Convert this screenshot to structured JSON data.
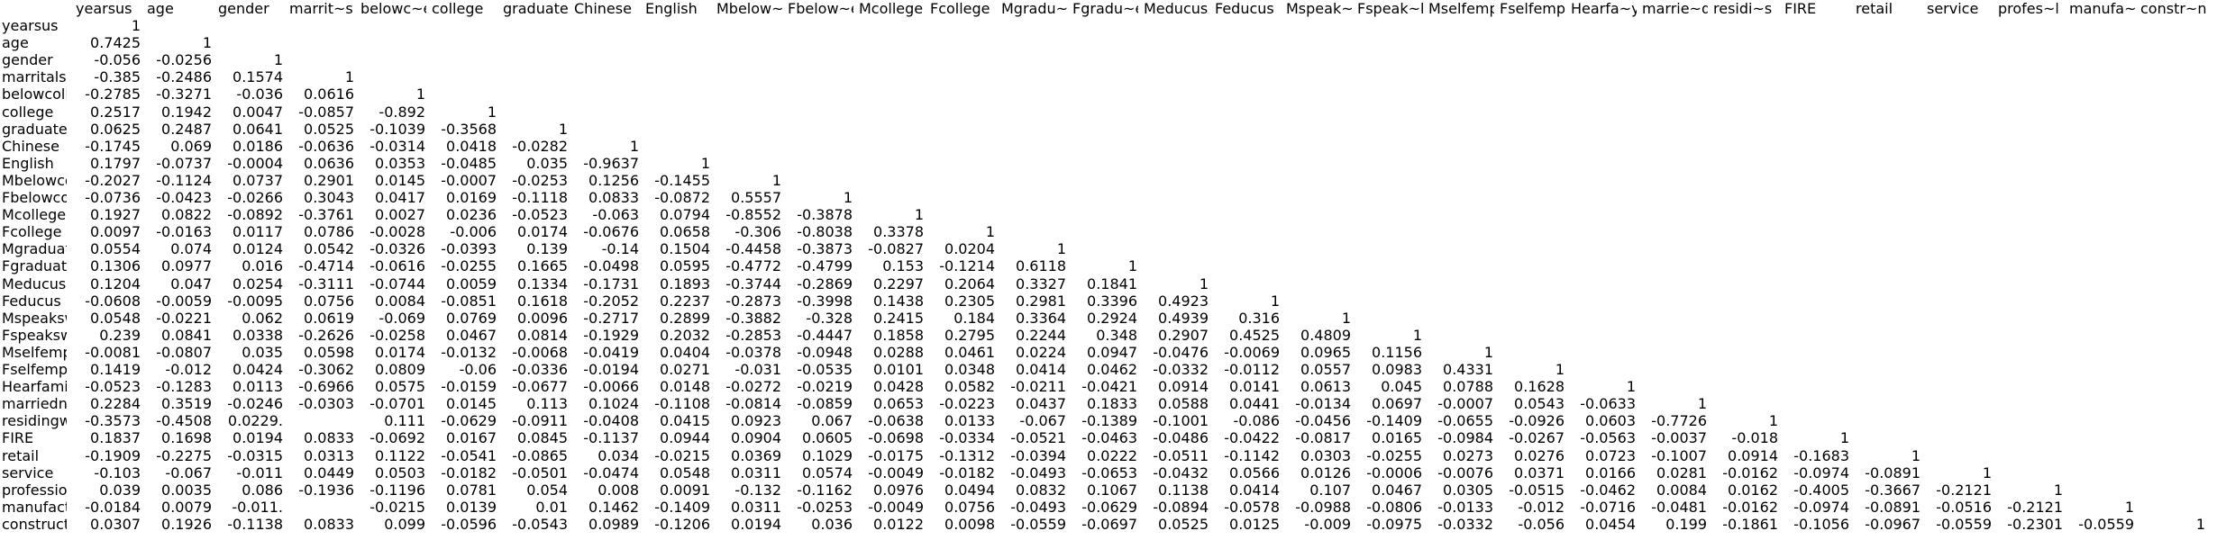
{
  "columns": [
    "yearsus",
    "age",
    "gender",
    "marrit~s",
    "belowc~e",
    "college",
    "graduate",
    "Chinese",
    "English",
    "Mbelow~e",
    "Fbelow~e",
    "Mcollege",
    "Fcollege",
    "Mgradu~e",
    "Fgradu~e",
    "Meducus",
    "Feducus",
    "Mspeak~l",
    "Fspeak~l",
    "Mselfemp",
    "Fselfemp",
    "Hearfa~y",
    "marrie~d",
    "residi~s",
    "FIRE",
    "retail",
    "service",
    "profes~l",
    "manufa~g",
    "constr~n"
  ],
  "rows": [
    {
      "label": "yearsus",
      "values": [
        "1"
      ]
    },
    {
      "label": "age",
      "values": [
        "0.7425",
        "1"
      ]
    },
    {
      "label": "gender",
      "values": [
        "-0.056",
        "-0.0256",
        "1"
      ]
    },
    {
      "label": "marritalst",
      "values": [
        "-0.385",
        "-0.2486",
        "0.1574",
        "1"
      ]
    },
    {
      "label": "belowcolle",
      "values": [
        "-0.2785",
        "-0.3271",
        "-0.036",
        "0.0616",
        "1"
      ]
    },
    {
      "label": "college",
      "values": [
        "0.2517",
        "0.1942",
        "0.0047",
        "-0.0857",
        "-0.892",
        "1"
      ]
    },
    {
      "label": "graduate",
      "values": [
        "0.0625",
        "0.2487",
        "0.0641",
        "0.0525",
        "-0.1039",
        "-0.3568",
        "1"
      ]
    },
    {
      "label": "Chinese",
      "values": [
        "-0.1745",
        "0.069",
        "0.0186",
        "-0.0636",
        "-0.0314",
        "0.0418",
        "-0.0282",
        "1"
      ]
    },
    {
      "label": "English",
      "values": [
        "0.1797",
        "-0.0737",
        "-0.0004",
        "0.0636",
        "0.0353",
        "-0.0485",
        "0.035",
        "-0.9637",
        "1"
      ]
    },
    {
      "label": "Mbelowcol",
      "values": [
        "-0.2027",
        "-0.1124",
        "0.0737",
        "0.2901",
        "0.0145",
        "-0.0007",
        "-0.0253",
        "0.1256",
        "-0.1455",
        "1"
      ]
    },
    {
      "label": "Fbelowcoll",
      "values": [
        "-0.0736",
        "-0.0423",
        "-0.0266",
        "0.3043",
        "0.0417",
        "0.0169",
        "-0.1118",
        "0.0833",
        "-0.0872",
        "0.5557",
        "1"
      ]
    },
    {
      "label": "Mcollege",
      "values": [
        "0.1927",
        "0.0822",
        "-0.0892",
        "-0.3761",
        "0.0027",
        "0.0236",
        "-0.0523",
        "-0.063",
        "0.0794",
        "-0.8552",
        "-0.3878",
        "1"
      ]
    },
    {
      "label": "Fcollege",
      "values": [
        "0.0097",
        "-0.0163",
        "0.0117",
        "0.0786",
        "-0.0028",
        "-0.006",
        "0.0174",
        "-0.0676",
        "0.0658",
        "-0.306",
        "-0.8038",
        "0.3378",
        "1"
      ]
    },
    {
      "label": "Mgraduate",
      "values": [
        "0.0554",
        "0.074",
        "0.0124",
        "0.0542",
        "-0.0326",
        "-0.0393",
        "0.139",
        "-0.14",
        "0.1504",
        "-0.4458",
        "-0.3873",
        "-0.0827",
        "0.0204",
        "1"
      ]
    },
    {
      "label": "Fgraduate",
      "values": [
        "0.1306",
        "0.0977",
        "0.016",
        "-0.4714",
        "-0.0616",
        "-0.0255",
        "0.1665",
        "-0.0498",
        "0.0595",
        "-0.4772",
        "-0.4799",
        "0.153",
        "-0.1214",
        "0.6118",
        "1"
      ]
    },
    {
      "label": "Meducus",
      "values": [
        "0.1204",
        "0.047",
        "0.0254",
        "-0.3111",
        "-0.0744",
        "0.0059",
        "0.1334",
        "-0.1731",
        "0.1893",
        "-0.3744",
        "-0.2869",
        "0.2297",
        "0.2064",
        "0.3327",
        "0.1841",
        "1"
      ]
    },
    {
      "label": "Feducus",
      "values": [
        "-0.0608",
        "-0.0059",
        "-0.0095",
        "0.0756",
        "0.0084",
        "-0.0851",
        "0.1618",
        "-0.2052",
        "0.2237",
        "-0.2873",
        "-0.3998",
        "0.1438",
        "0.2305",
        "0.2981",
        "0.3396",
        "0.4923",
        "1"
      ]
    },
    {
      "label": "Mspeaksw",
      "values": [
        "0.0548",
        "-0.0221",
        "0.062",
        "0.0619",
        "-0.069",
        "0.0769",
        "0.0096",
        "-0.2717",
        "0.2899",
        "-0.3882",
        "-0.328",
        "0.2415",
        "0.184",
        "0.3364",
        "0.2924",
        "0.4939",
        "0.316",
        "1"
      ]
    },
    {
      "label": "Fspeaksw",
      "values": [
        "0.239",
        "0.0841",
        "0.0338",
        "-0.2626",
        "-0.0258",
        "0.0467",
        "0.0814",
        "-0.1929",
        "0.2032",
        "-0.2853",
        "-0.4447",
        "0.1858",
        "0.2795",
        "0.2244",
        "0.348",
        "0.2907",
        "0.4525",
        "0.4809",
        "1"
      ]
    },
    {
      "label": "Mselfemp",
      "values": [
        "-0.0081",
        "-0.0807",
        "0.035",
        "0.0598",
        "0.0174",
        "-0.0132",
        "-0.0068",
        "-0.0419",
        "0.0404",
        "-0.0378",
        "-0.0948",
        "0.0288",
        "0.0461",
        "0.0224",
        "0.0947",
        "-0.0476",
        "-0.0069",
        "0.0965",
        "0.1156",
        "1"
      ]
    },
    {
      "label": "Fselfemp",
      "values": [
        "0.1419",
        "-0.012",
        "0.0424",
        "-0.3062",
        "0.0809",
        "-0.06",
        "-0.0336",
        "-0.0194",
        "0.0271",
        "-0.031",
        "-0.0535",
        "0.0101",
        "0.0348",
        "0.0414",
        "0.0462",
        "-0.0332",
        "-0.0112",
        "0.0557",
        "0.0983",
        "0.4331",
        "1"
      ]
    },
    {
      "label": "Hearfamily",
      "values": [
        "-0.0523",
        "-0.1283",
        "0.0113",
        "-0.6966",
        "0.0575",
        "-0.0159",
        "-0.0677",
        "-0.0066",
        "0.0148",
        "-0.0272",
        "-0.0219",
        "0.0428",
        "0.0582",
        "-0.0211",
        "-0.0421",
        "0.0914",
        "0.0141",
        "0.0613",
        "0.045",
        "0.0788",
        "0.1628",
        "1"
      ]
    },
    {
      "label": "marriedno",
      "values": [
        "0.2284",
        "0.3519",
        "-0.0246",
        "-0.0303",
        "-0.0701",
        "0.0145",
        "0.113",
        "0.1024",
        "-0.1108",
        "-0.0814",
        "-0.0859",
        "0.0653",
        "-0.0223",
        "0.0437",
        "0.1833",
        "0.0588",
        "0.0441",
        "-0.0134",
        "0.0697",
        "-0.0007",
        "0.0543",
        "-0.0633",
        "1"
      ]
    },
    {
      "label": "residingwi",
      "values": [
        "-0.3573",
        "-0.4508",
        "0.0229.",
        "",
        "0.111",
        "-0.0629",
        "-0.0911",
        "-0.0408",
        "0.0415",
        "0.0923",
        "0.067",
        "-0.0638",
        "0.0133",
        "-0.067",
        "-0.1389",
        "-0.1001",
        "-0.086",
        "-0.0456",
        "-0.1409",
        "-0.0655",
        "-0.0926",
        "0.0603",
        "-0.7726",
        "1"
      ]
    },
    {
      "label": "FIRE",
      "values": [
        "0.1837",
        "0.1698",
        "0.0194",
        "0.0833",
        "-0.0692",
        "0.0167",
        "0.0845",
        "-0.1137",
        "0.0944",
        "0.0904",
        "0.0605",
        "-0.0698",
        "-0.0334",
        "-0.0521",
        "-0.0463",
        "-0.0486",
        "-0.0422",
        "-0.0817",
        "0.0165",
        "-0.0984",
        "-0.0267",
        "-0.0563",
        "-0.0037",
        "-0.018",
        "1"
      ]
    },
    {
      "label": "retail",
      "values": [
        "-0.1909",
        "-0.2275",
        "-0.0315",
        "0.0313",
        "0.1122",
        "-0.0541",
        "-0.0865",
        "0.034",
        "-0.0215",
        "0.0369",
        "0.1029",
        "-0.0175",
        "-0.1312",
        "-0.0394",
        "0.0222",
        "-0.0511",
        "-0.1142",
        "0.0303",
        "-0.0255",
        "0.0273",
        "0.0276",
        "0.0723",
        "-0.1007",
        "0.0914",
        "-0.1683",
        "1"
      ]
    },
    {
      "label": "service",
      "values": [
        "-0.103",
        "-0.067",
        "-0.011",
        "0.0449",
        "0.0503",
        "-0.0182",
        "-0.0501",
        "-0.0474",
        "0.0548",
        "0.0311",
        "0.0574",
        "-0.0049",
        "-0.0182",
        "-0.0493",
        "-0.0653",
        "-0.0432",
        "0.0566",
        "0.0126",
        "-0.0006",
        "-0.0076",
        "0.0371",
        "0.0166",
        "0.0281",
        "-0.0162",
        "-0.0974",
        "-0.0891",
        "1"
      ]
    },
    {
      "label": "profession",
      "values": [
        "0.039",
        "0.0035",
        "0.086",
        "-0.1936",
        "-0.1196",
        "0.0781",
        "0.054",
        "0.008",
        "0.0091",
        "-0.132",
        "-0.1162",
        "0.0976",
        "0.0494",
        "0.0832",
        "0.1067",
        "0.1138",
        "0.0414",
        "0.107",
        "0.0467",
        "0.0305",
        "-0.0515",
        "-0.0462",
        "0.0084",
        "0.0162",
        "-0.4005",
        "-0.3667",
        "-0.2121",
        "1"
      ]
    },
    {
      "label": "manufactu",
      "values": [
        "-0.0184",
        "0.0079",
        "-0.011.",
        "",
        "-0.0215",
        "0.0139",
        "0.01",
        "0.1462",
        "-0.1409",
        "0.0311",
        "-0.0253",
        "-0.0049",
        "0.0756",
        "-0.0493",
        "-0.0629",
        "-0.0894",
        "-0.0578",
        "-0.0988",
        "-0.0806",
        "-0.0133",
        "-0.012",
        "-0.0716",
        "-0.0481",
        "-0.0162",
        "-0.0974",
        "-0.0891",
        "-0.0516",
        "-0.2121",
        "1"
      ]
    },
    {
      "label": "constructi",
      "values": [
        "0.0307",
        "0.1926",
        "-0.1138",
        "0.0833",
        "0.099",
        "-0.0596",
        "-0.0543",
        "0.0989",
        "-0.1206",
        "0.0194",
        "0.036",
        "0.0122",
        "0.0098",
        "-0.0559",
        "-0.0697",
        "0.0525",
        "0.0125",
        "-0.009",
        "-0.0975",
        "-0.0332",
        "-0.056",
        "0.0454",
        "0.199",
        "-0.1861",
        "-0.1056",
        "-0.0967",
        "-0.0559",
        "-0.2301",
        "-0.0559",
        "1"
      ]
    }
  ]
}
